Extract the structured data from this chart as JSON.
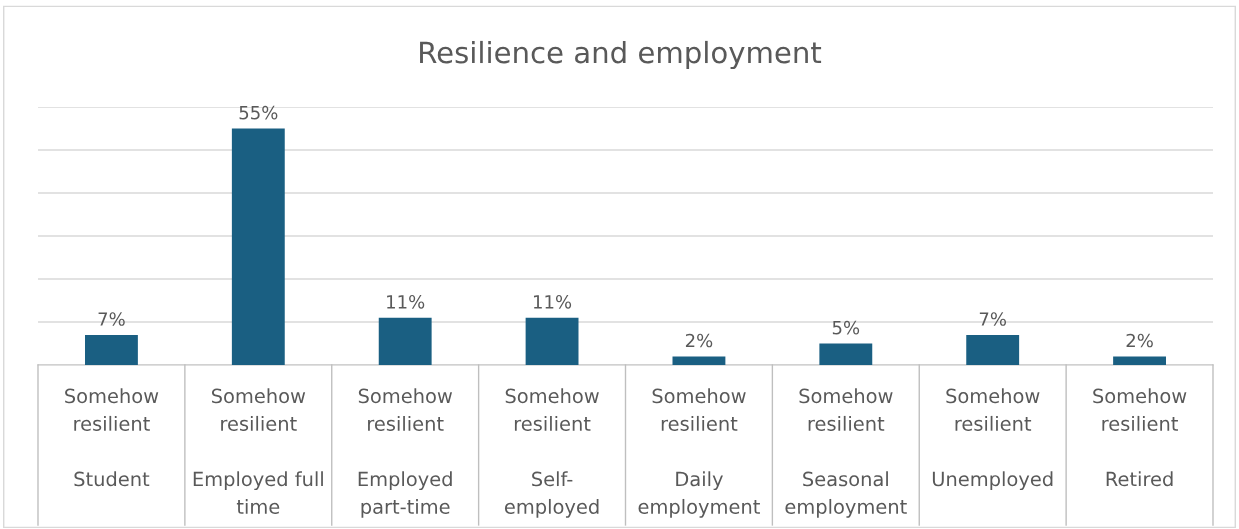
{
  "chart_data": {
    "type": "bar",
    "title": "Resilience and employment",
    "categories": [
      "Somehow\nresilient\n\nStudent",
      "Somehow\nresilient\n\nEmployed full\ntime",
      "Somehow\nresilient\n\nEmployed\npart-time",
      "Somehow\nresilient\n\nSelf-\nemployed",
      "Somehow\nresilient\n\nDaily\nemployment",
      "Somehow\nresilient\n\nSeasonal\nemployment",
      "Somehow\nresilient\n\nUnemployed",
      "Somehow\nresilient\n\nRetired"
    ],
    "values": [
      7,
      55,
      11,
      11,
      2,
      5,
      7,
      2
    ],
    "value_labels": [
      "7%",
      "55%",
      "11%",
      "11%",
      "2%",
      "5%",
      "7%",
      "2%"
    ],
    "color": "#1a5f82",
    "ylim": [
      0,
      60
    ],
    "yticks": [
      {
        "value": 0,
        "label": null
      },
      {
        "value": 10,
        "label": null
      },
      {
        "value": 20,
        "label": null
      },
      {
        "value": 30,
        "label": null
      },
      {
        "value": 40,
        "label": null
      },
      {
        "value": 50,
        "label": null
      },
      {
        "value": 60,
        "label": null
      }
    ],
    "grid": "y",
    "tick_labels": "x"
  }
}
